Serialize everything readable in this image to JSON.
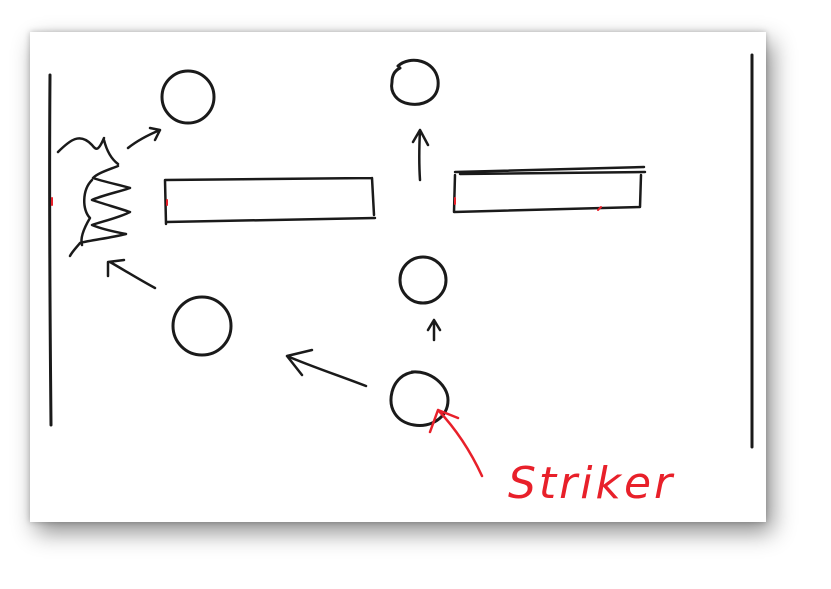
{
  "colors": {
    "ink": "#1a1a1a",
    "annotation": "#e8202a",
    "paper": "#ffffff"
  },
  "sketch": {
    "annotation_label": "Striker"
  }
}
